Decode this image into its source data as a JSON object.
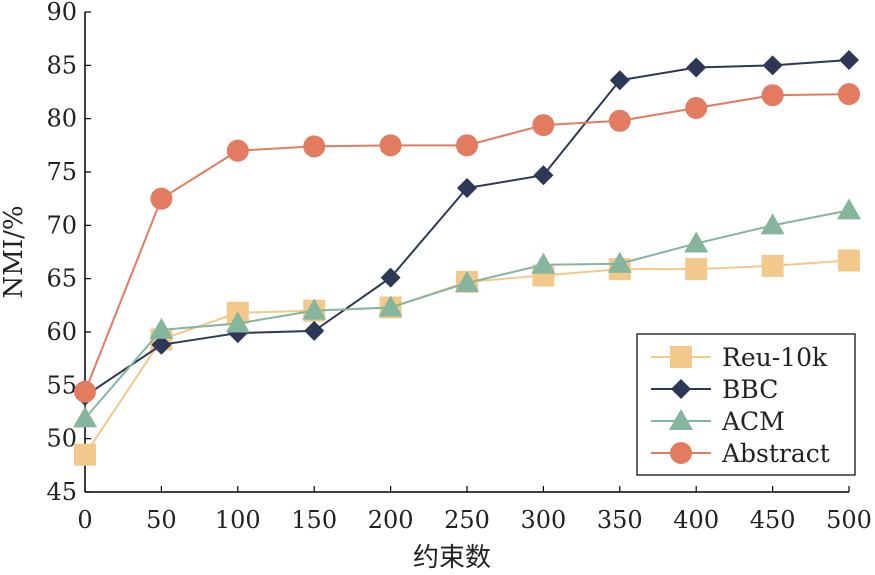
{
  "chart_data": {
    "type": "line",
    "xlabel": "约束数",
    "ylabel": "NMI/%",
    "xlim": [
      0,
      500
    ],
    "ylim": [
      45,
      90
    ],
    "x_ticks": [
      "0",
      "50",
      "100",
      "150",
      "200",
      "250",
      "300",
      "350",
      "400",
      "450",
      "500"
    ],
    "y_ticks": [
      "45",
      "50",
      "55",
      "60",
      "65",
      "70",
      "75",
      "80",
      "85",
      "90"
    ],
    "x": [
      0,
      50,
      100,
      150,
      200,
      250,
      300,
      350,
      400,
      450,
      500
    ],
    "grid": false,
    "legend_position": "bottom-right",
    "series": [
      {
        "name": "Reu-10k",
        "marker": "square",
        "color": "#f2c98a",
        "values": [
          48.5,
          59.3,
          61.8,
          62.0,
          62.3,
          64.7,
          65.3,
          65.9,
          65.9,
          66.2,
          66.7
        ]
      },
      {
        "name": "BBC",
        "marker": "diamond",
        "color": "#2e3756",
        "values": [
          54.0,
          58.8,
          59.9,
          60.1,
          65.1,
          73.5,
          74.7,
          83.6,
          84.8,
          85.0,
          85.5
        ]
      },
      {
        "name": "ACM",
        "marker": "triangle",
        "color": "#86b59e",
        "values": [
          51.9,
          60.2,
          60.8,
          62.0,
          62.3,
          64.6,
          66.3,
          66.4,
          68.3,
          70.0,
          71.4
        ]
      },
      {
        "name": "Abstract",
        "marker": "circle",
        "color": "#e27b5f",
        "values": [
          54.4,
          72.5,
          77.0,
          77.4,
          77.5,
          77.5,
          79.4,
          79.8,
          81.0,
          82.2,
          82.3
        ]
      }
    ]
  }
}
